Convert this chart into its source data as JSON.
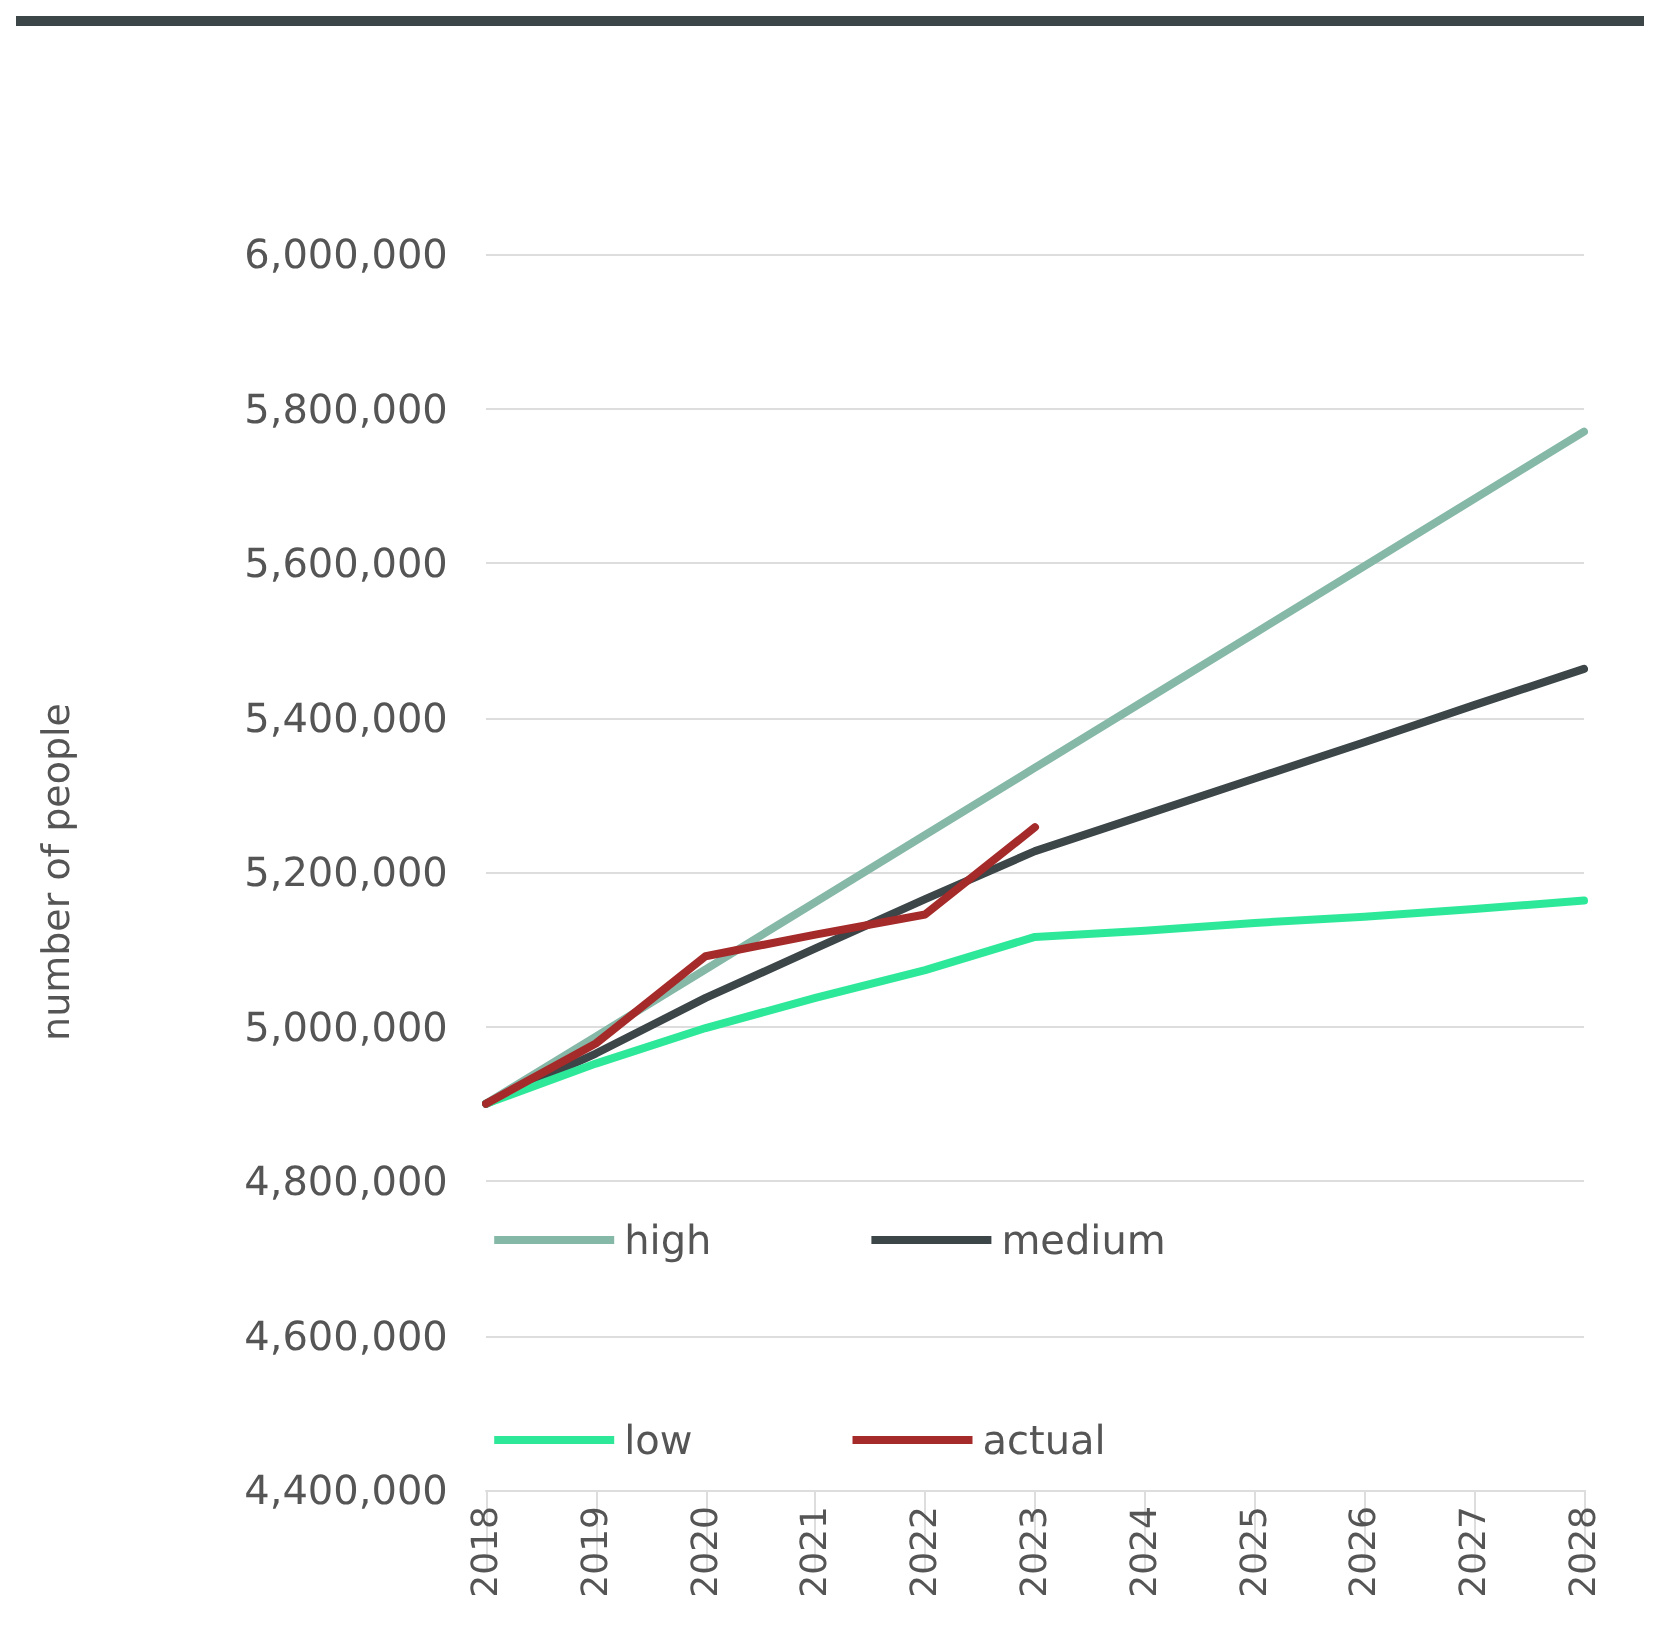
{
  "chart_data": {
    "type": "line",
    "ylabel": "number of people",
    "categories": [
      "2018",
      "2019",
      "2020",
      "2021",
      "2022",
      "2023",
      "2024",
      "2025",
      "2026",
      "2027",
      "2028"
    ],
    "series": [
      {
        "name": "high",
        "color": "#86b8a8",
        "values": [
          4900000,
          4987000,
          5074000,
          5161000,
          5248000,
          5335000,
          5422000,
          5509000,
          5596000,
          5683000,
          5770000
        ]
      },
      {
        "name": "medium",
        "color": "#3c4548",
        "values": [
          4900000,
          4965000,
          5037000,
          5101000,
          5165000,
          5227000,
          5274000,
          5321000,
          5368000,
          5416000,
          5463000
        ]
      },
      {
        "name": "low",
        "color": "#2ee89a",
        "values": [
          4900000,
          4952000,
          4998000,
          5037000,
          5073000,
          5116000,
          5124000,
          5134000,
          5142000,
          5152000,
          5163000
        ]
      },
      {
        "name": "actual",
        "color": "#a52a2a",
        "values": [
          4900000,
          4978000,
          5091000,
          5119000,
          5145000,
          5258000,
          null,
          null,
          null,
          null,
          null
        ]
      }
    ],
    "ylim": [
      4400000,
      6000000
    ],
    "yticks": [
      {
        "value": 4400000,
        "label": "4,400,000"
      },
      {
        "value": 4600000,
        "label": "4,600,000"
      },
      {
        "value": 4800000,
        "label": "4,800,000"
      },
      {
        "value": 5000000,
        "label": "5,000,000"
      },
      {
        "value": 5200000,
        "label": "5,200,000"
      },
      {
        "value": 5400000,
        "label": "5,400,000"
      },
      {
        "value": 5600000,
        "label": "5,600,000"
      },
      {
        "value": 5800000,
        "label": "5,800,000"
      },
      {
        "value": 6000000,
        "label": "6,000,000"
      }
    ],
    "grid": "y",
    "legend": "bottom",
    "marker": "none",
    "line_style": "solid"
  }
}
